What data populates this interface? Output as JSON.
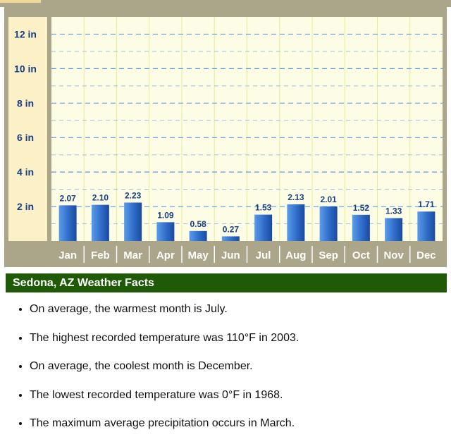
{
  "chart_data": {
    "type": "bar",
    "categories": [
      "Jan",
      "Feb",
      "Mar",
      "Apr",
      "May",
      "Jun",
      "Jul",
      "Aug",
      "Sep",
      "Oct",
      "Nov",
      "Dec"
    ],
    "values": [
      2.07,
      2.1,
      2.23,
      1.09,
      0.58,
      0.27,
      1.53,
      2.13,
      2.01,
      1.52,
      1.33,
      1.71
    ],
    "value_labels": [
      "2.07",
      "2.10",
      "2.23",
      "1.09",
      "0.58",
      "0.27",
      "1.53",
      "2.13",
      "2.01",
      "1.52",
      "1.33",
      "1.71"
    ],
    "y_ticks": [
      {
        "value": 2,
        "label": "2 in"
      },
      {
        "value": 4,
        "label": "4 in"
      },
      {
        "value": 6,
        "label": "6 in"
      },
      {
        "value": 8,
        "label": "8 in"
      },
      {
        "value": 10,
        "label": "10 in"
      },
      {
        "value": 12,
        "label": "12 in"
      }
    ],
    "ylim": [
      0,
      13
    ],
    "title": "",
    "xlabel": "",
    "ylabel": "",
    "grid": true,
    "colors": {
      "bar_light": "#5a9bea",
      "bar_dark": "#1a4aa0",
      "plot_bg": "#fdfde6",
      "grid": "#5a9be0",
      "label_text": "#183f86",
      "frame": "#aba68a"
    }
  },
  "facts": {
    "title": "Sedona, AZ Weather Facts",
    "items": [
      "On average, the warmest month is July.",
      "The highest recorded temperature was 110°F in 2003.",
      "On average, the coolest month is December.",
      "The lowest recorded temperature was 0°F in 1968.",
      "The maximum average precipitation occurs in March."
    ]
  }
}
